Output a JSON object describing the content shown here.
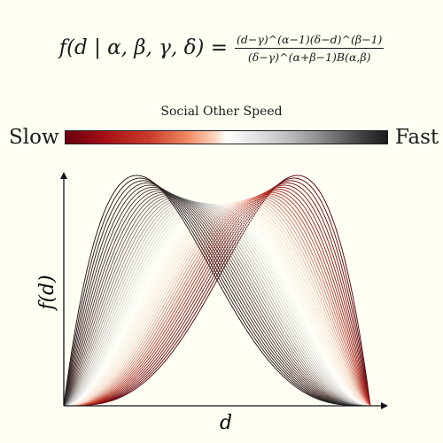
{
  "formula": {
    "lhs": "f(d | α, β, γ, δ) =",
    "numerator": "(d−γ)^(α−1)(δ−d)^(β−1)",
    "denominator": "(δ−γ)^(α+β−1)B(α,β)"
  },
  "colorbar": {
    "title": "Social Other Speed",
    "left_label": "Slow",
    "right_label": "Fast",
    "colors": [
      "#67000d",
      "#cb3b2c",
      "#fddbc7",
      "#ffffff",
      "#bababa",
      "#4d4d4d",
      "#1a1a1a"
    ]
  },
  "chart_data": {
    "type": "line",
    "title": "",
    "xlabel": "d",
    "ylabel": "f(d)",
    "x_ticks": "none",
    "y_ticks": "none",
    "grid": false,
    "distribution": "four-parameter beta",
    "gamma": 0,
    "delta": 1,
    "xlim": [
      0,
      1
    ],
    "series_count": 50,
    "family_a": {
      "alpha": [
        2.0,
        4.2
      ],
      "beta": [
        4.2,
        2.0
      ],
      "color_from": "slow",
      "color_to": "fast"
    },
    "family_b": {
      "alpha": [
        4.2,
        2.0
      ],
      "beta": [
        2.0,
        4.2
      ],
      "color_from": "slow",
      "color_to": "fast"
    }
  }
}
